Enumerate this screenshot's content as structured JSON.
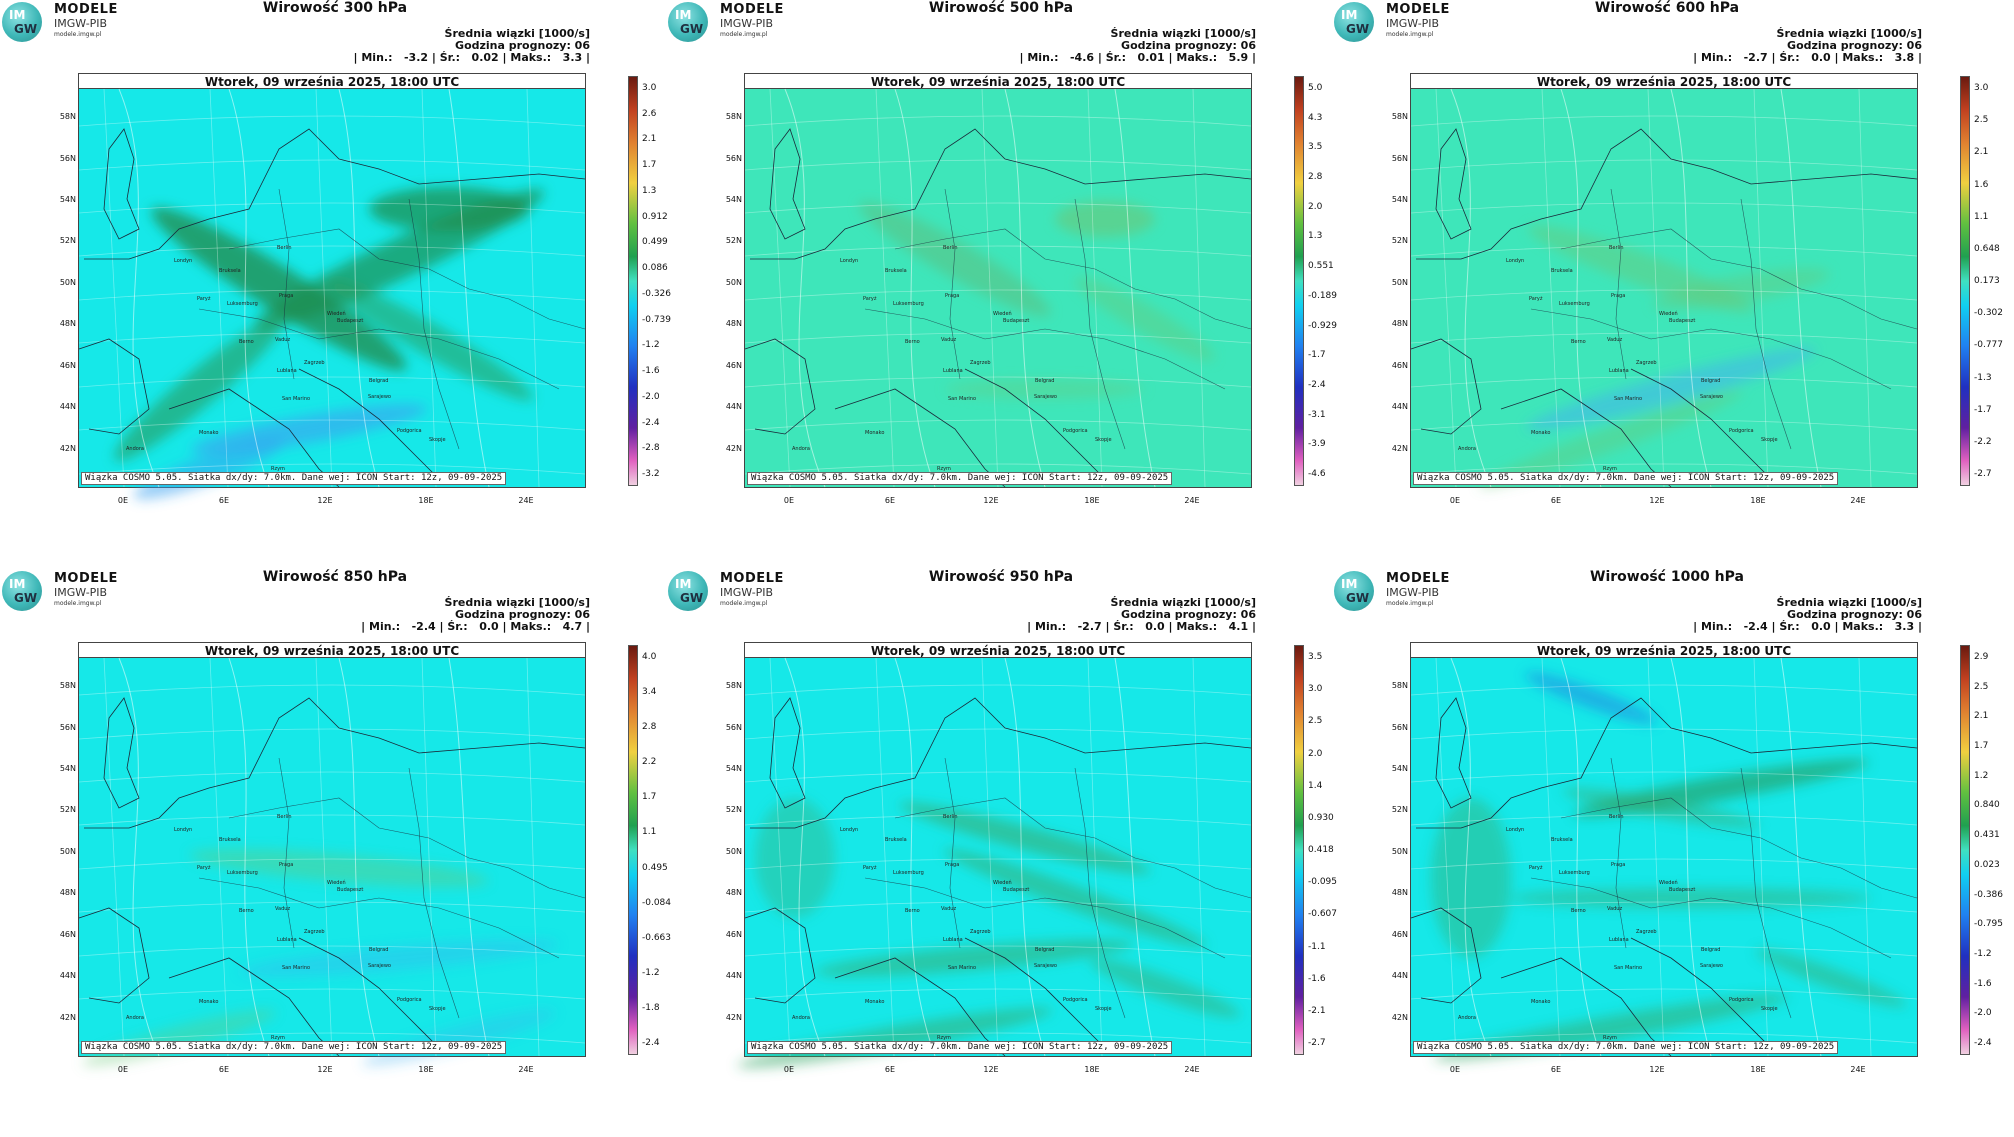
{
  "logo": {
    "title": "MODELE",
    "subtitle": "IMGW-PIB",
    "url": "modele.imgw.pl",
    "initials_top": "IM",
    "initials_bottom": "GW"
  },
  "common": {
    "date": "Wtorek, 09 września 2025, 18:00 UTC",
    "info_line1": "Średnia wiązki [1000/s]",
    "info_line2": "Godzina prognozy: 06",
    "footer": "Wiązka COSMO 5.05. Siatka dx/dy: 7.0km. Dane wej: ICON Start: 12z, 09-09-2025",
    "lat_labels": [
      "58N",
      "56N",
      "54N",
      "52N",
      "50N",
      "48N",
      "46N",
      "44N",
      "42N"
    ],
    "lon_labels": [
      "0E",
      "6E",
      "12E",
      "18E",
      "24E"
    ],
    "cities": [
      "Londyn",
      "Bruksela",
      "Paryż",
      "Luksemburg",
      "Berlin",
      "Praga",
      "Wiedeń",
      "Berno",
      "Vaduz",
      "Budapeszt",
      "Zagrzeb",
      "Lublana",
      "Belgrad",
      "San Marino",
      "Sarajewo",
      "Podgorica",
      "Skopje",
      "Rzym",
      "Andora",
      "Monako"
    ]
  },
  "panels": [
    {
      "title": "Wirowość 300 hPa",
      "stats": "| Min.:   -3.2 | Śr.:   0.02 | Maks.:   3.3 |",
      "colorbar": [
        "3.0",
        "2.6",
        "2.1",
        "1.7",
        "1.3",
        "0.912",
        "0.499",
        "0.086",
        "-0.326",
        "-0.739",
        "-1.2",
        "-1.6",
        "-2.0",
        "-2.4",
        "-2.8",
        "-3.2"
      ]
    },
    {
      "title": "Wirowość 500 hPa",
      "stats": "| Min.:   -4.6 | Śr.:   0.01 | Maks.:   5.9 |",
      "colorbar": [
        "5.0",
        "4.3",
        "3.5",
        "2.8",
        "2.0",
        "1.3",
        "0.551",
        "-0.189",
        "-0.929",
        "-1.7",
        "-2.4",
        "-3.1",
        "-3.9",
        "-4.6"
      ]
    },
    {
      "title": "Wirowość 600 hPa",
      "stats": "| Min.:   -2.7 | Śr.:   0.0 | Maks.:   3.8 |",
      "colorbar": [
        "3.0",
        "2.5",
        "2.1",
        "1.6",
        "1.1",
        "0.648",
        "0.173",
        "-0.302",
        "-0.777",
        "-1.3",
        "-1.7",
        "-2.2",
        "-2.7"
      ]
    },
    {
      "title": "Wirowość 850 hPa",
      "stats": "| Min.:   -2.4 | Śr.:   0.0 | Maks.:   4.7 |",
      "colorbar": [
        "4.0",
        "3.4",
        "2.8",
        "2.2",
        "1.7",
        "1.1",
        "0.495",
        "-0.084",
        "-0.663",
        "-1.2",
        "-1.8",
        "-2.4"
      ]
    },
    {
      "title": "Wirowość 950 hPa",
      "stats": "| Min.:   -2.7 | Śr.:   0.0 | Maks.:   4.1 |",
      "colorbar": [
        "3.5",
        "3.0",
        "2.5",
        "2.0",
        "1.4",
        "0.930",
        "0.418",
        "-0.095",
        "-0.607",
        "-1.1",
        "-1.6",
        "-2.1",
        "-2.7"
      ]
    },
    {
      "title": "Wirowość 1000 hPa",
      "stats": "| Min.:   -2.4 | Śr.:   0.0 | Maks.:   3.3 |",
      "colorbar": [
        "2.9",
        "2.5",
        "2.1",
        "1.7",
        "1.2",
        "0.840",
        "0.431",
        "0.023",
        "-0.386",
        "-0.795",
        "-1.2",
        "-1.6",
        "-2.0",
        "-2.4"
      ]
    }
  ],
  "colors": {
    "background": "#13e8e8",
    "positive": "#3aa86a",
    "strong_positive": "#1d7a3e",
    "negative": "#1a8fe8",
    "neutral_green": "#38e0b0"
  }
}
